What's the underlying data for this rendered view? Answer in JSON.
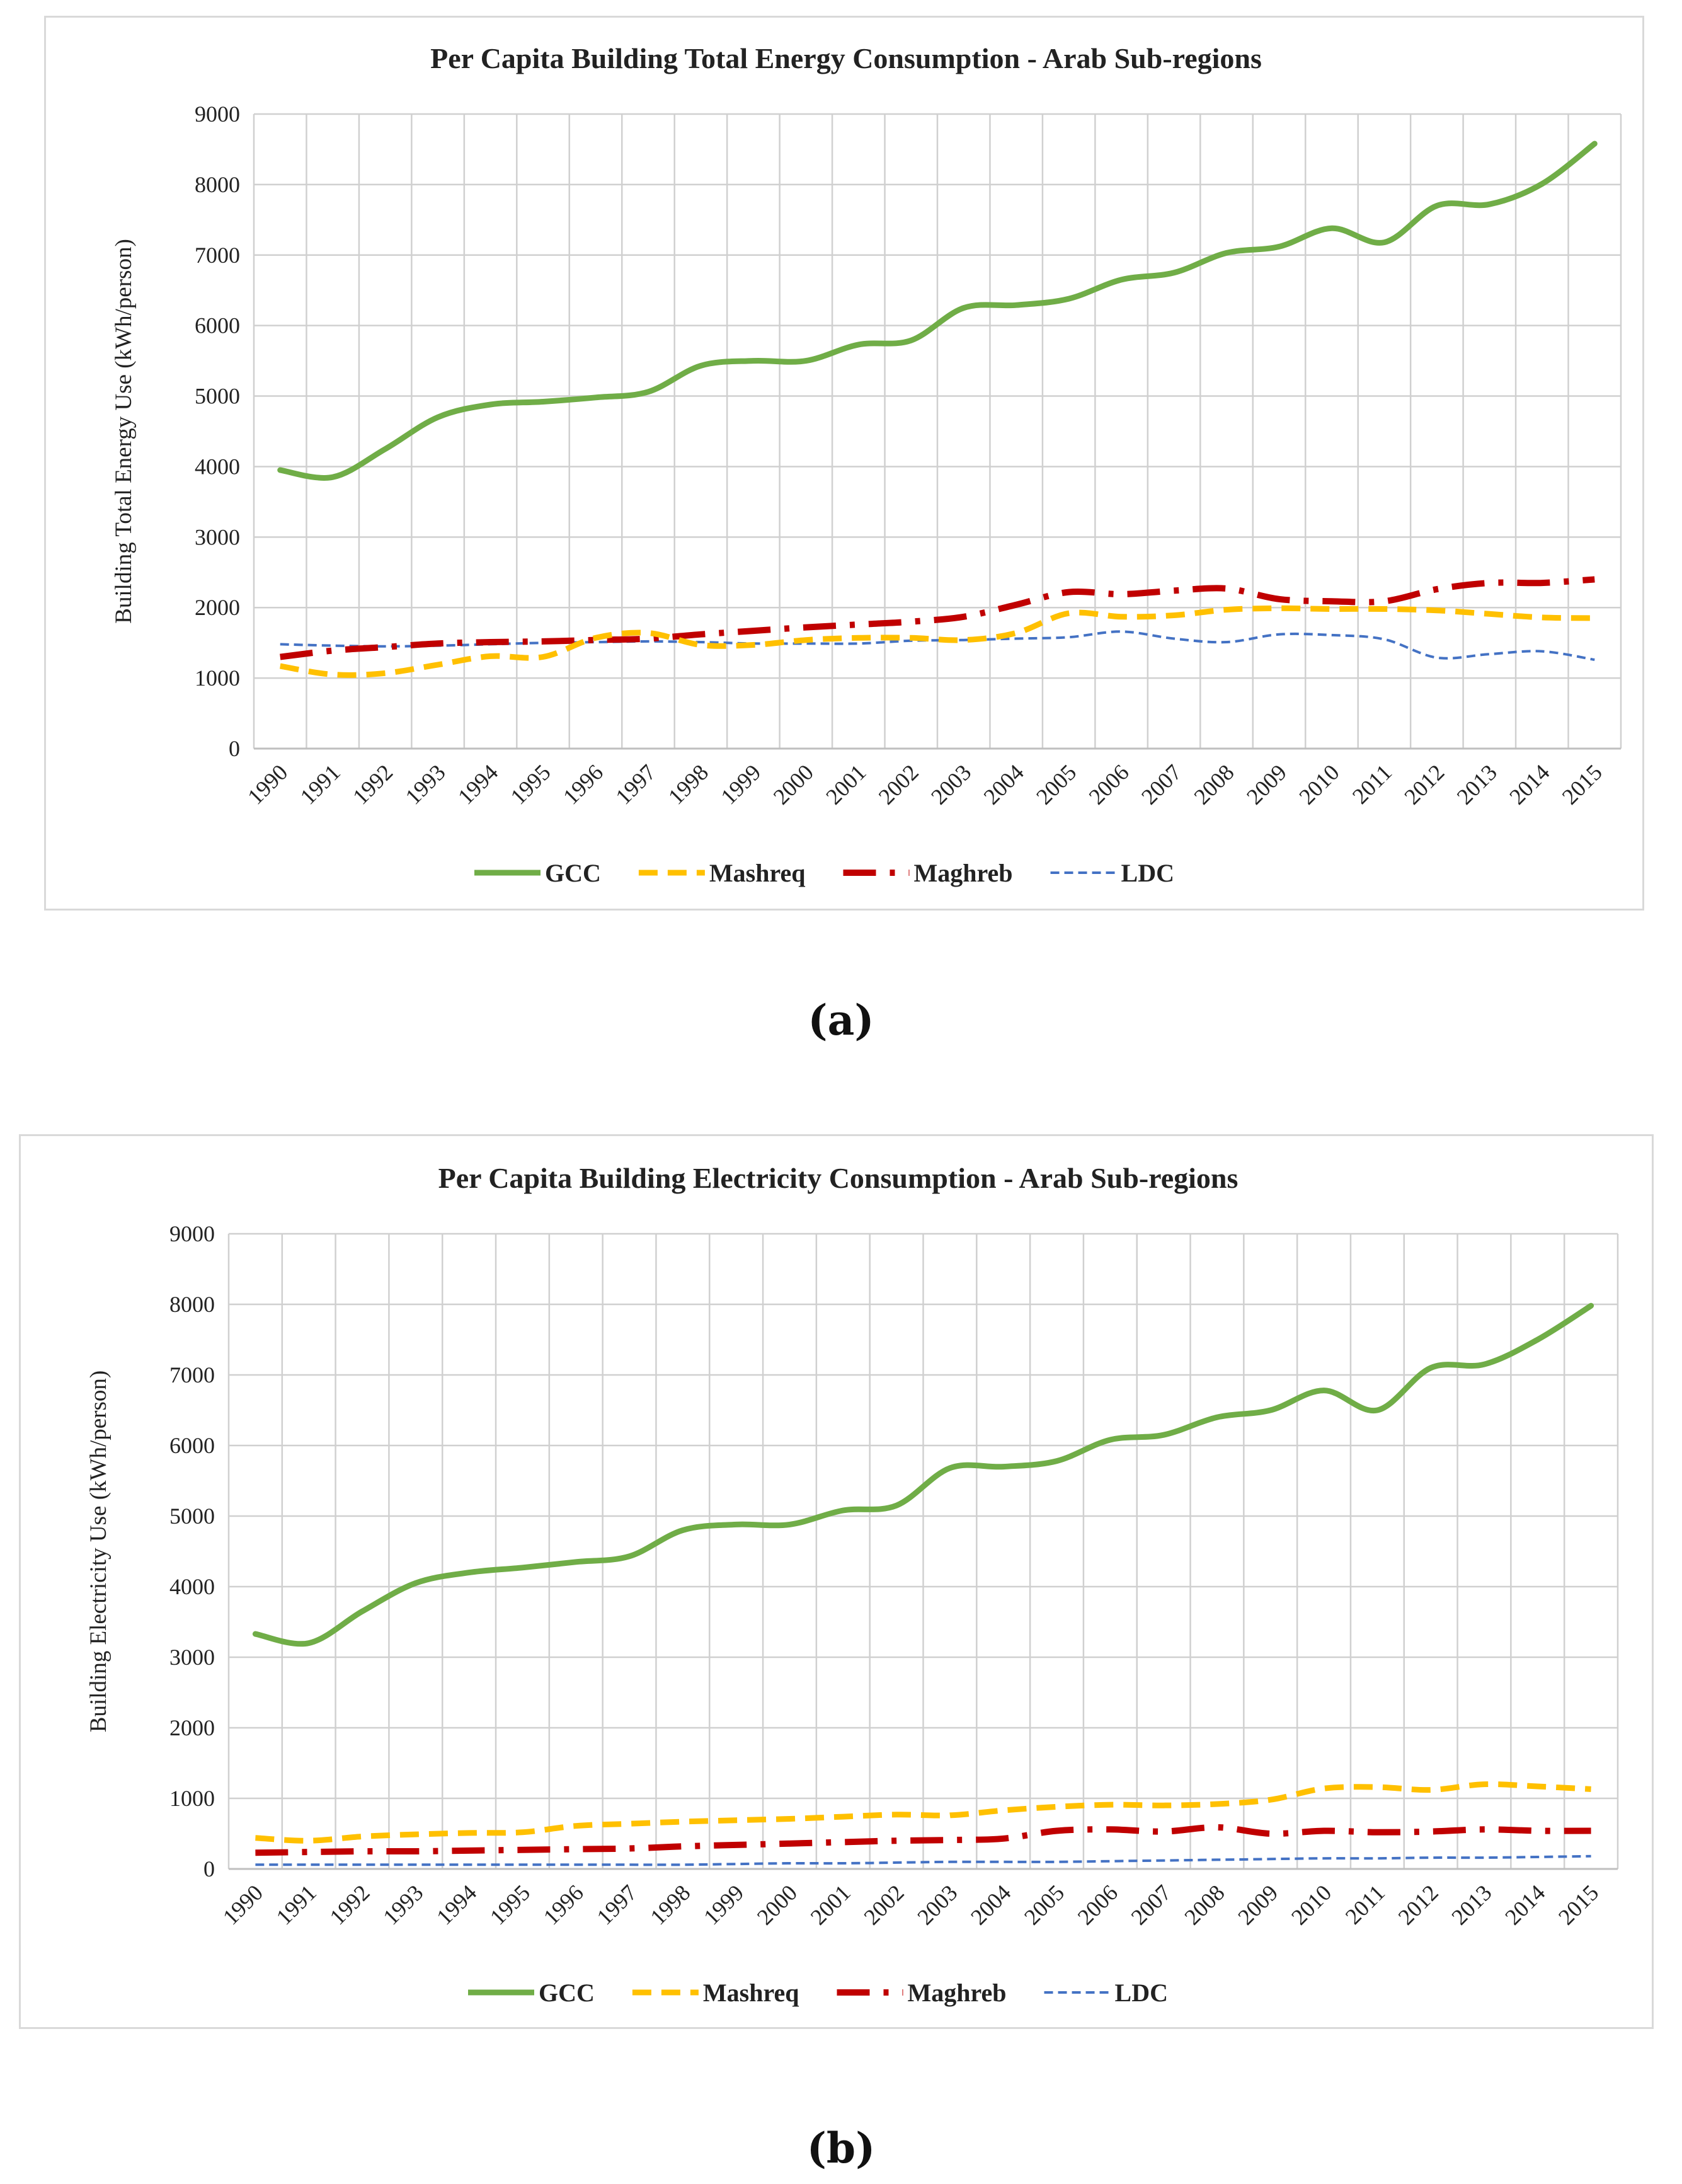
{
  "chart_data": [
    {
      "type": "line",
      "title": "Per Capita Building Total Energy Consumption - Arab Sub-regions",
      "xlabel": "",
      "ylabel": "Building Total Energy Use  (kWh/person)",
      "ylim": [
        0,
        9000
      ],
      "yticks": [
        "0",
        "1000",
        "2000",
        "3000",
        "4000",
        "5000",
        "6000",
        "7000",
        "8000",
        "9000"
      ],
      "categories": [
        "1990",
        "1991",
        "1992",
        "1993",
        "1994",
        "1995",
        "1996",
        "1997",
        "1998",
        "1999",
        "2000",
        "2001",
        "2002",
        "2003",
        "2004",
        "2005",
        "2006",
        "2007",
        "2008",
        "2009",
        "2010",
        "2011",
        "2012",
        "2013",
        "2014",
        "2015"
      ],
      "legend_position": "bottom",
      "grid": true,
      "series": [
        {
          "name": "GCC",
          "color": "#70ad47",
          "style": "solid",
          "values": [
            3950,
            3850,
            4250,
            4700,
            4880,
            4920,
            4980,
            5060,
            5430,
            5500,
            5500,
            5730,
            5790,
            6250,
            6290,
            6380,
            6650,
            6750,
            7030,
            7120,
            7380,
            7180,
            7700,
            7720,
            8010,
            8580
          ]
        },
        {
          "name": "Mashreq",
          "color": "#ffc000",
          "style": "dashed",
          "values": [
            1170,
            1050,
            1070,
            1190,
            1310,
            1300,
            1570,
            1640,
            1470,
            1470,
            1540,
            1570,
            1570,
            1540,
            1640,
            1920,
            1870,
            1890,
            1970,
            1990,
            1980,
            1980,
            1960,
            1910,
            1860,
            1850
          ]
        },
        {
          "name": "Maghreb",
          "color": "#c00000",
          "style": "dashdot",
          "values": [
            1300,
            1390,
            1440,
            1490,
            1510,
            1520,
            1540,
            1560,
            1620,
            1670,
            1720,
            1760,
            1800,
            1870,
            2040,
            2220,
            2190,
            2240,
            2270,
            2120,
            2090,
            2090,
            2260,
            2350,
            2350,
            2400
          ]
        },
        {
          "name": "LDC",
          "color": "#4472c4",
          "style": "thin-dashed",
          "values": [
            1480,
            1460,
            1450,
            1460,
            1480,
            1500,
            1510,
            1520,
            1510,
            1490,
            1490,
            1490,
            1530,
            1540,
            1560,
            1580,
            1660,
            1560,
            1510,
            1620,
            1610,
            1550,
            1290,
            1340,
            1380,
            1260
          ]
        }
      ]
    },
    {
      "type": "line",
      "title": "Per Capita Building Electricity Consumption - Arab Sub-regions",
      "xlabel": "",
      "ylabel": "Building Electricity Use  (kWh/person)",
      "ylim": [
        0,
        9000
      ],
      "yticks": [
        "0",
        "1000",
        "2000",
        "3000",
        "4000",
        "5000",
        "6000",
        "7000",
        "8000",
        "9000"
      ],
      "categories": [
        "1990",
        "1991",
        "1992",
        "1993",
        "1994",
        "1995",
        "1996",
        "1997",
        "1998",
        "1999",
        "2000",
        "2001",
        "2002",
        "2003",
        "2004",
        "2005",
        "2006",
        "2007",
        "2008",
        "2009",
        "2010",
        "2011",
        "2012",
        "2013",
        "2014",
        "2015"
      ],
      "legend_position": "bottom",
      "grid": true,
      "series": [
        {
          "name": "GCC",
          "color": "#70ad47",
          "style": "solid",
          "values": [
            3330,
            3200,
            3650,
            4050,
            4200,
            4270,
            4350,
            4430,
            4800,
            4880,
            4880,
            5080,
            5150,
            5680,
            5700,
            5780,
            6080,
            6150,
            6400,
            6500,
            6780,
            6500,
            7100,
            7150,
            7500,
            7980
          ]
        },
        {
          "name": "Mashreq",
          "color": "#ffc000",
          "style": "dashed",
          "values": [
            440,
            400,
            460,
            490,
            510,
            520,
            610,
            640,
            670,
            690,
            710,
            740,
            770,
            760,
            830,
            880,
            910,
            900,
            920,
            980,
            1140,
            1160,
            1120,
            1200,
            1170,
            1130
          ]
        },
        {
          "name": "Maghreb",
          "color": "#c00000",
          "style": "dashdot",
          "values": [
            230,
            240,
            250,
            250,
            260,
            270,
            280,
            290,
            320,
            340,
            360,
            380,
            400,
            410,
            430,
            540,
            560,
            530,
            590,
            500,
            540,
            520,
            530,
            560,
            540,
            540
          ]
        },
        {
          "name": "LDC",
          "color": "#4472c4",
          "style": "thin-dashed",
          "values": [
            60,
            60,
            60,
            60,
            60,
            60,
            60,
            60,
            60,
            70,
            80,
            80,
            90,
            100,
            100,
            100,
            110,
            120,
            130,
            140,
            150,
            150,
            160,
            160,
            170,
            180
          ]
        }
      ]
    }
  ],
  "captions": {
    "a": "(a)",
    "b": "(b)"
  }
}
